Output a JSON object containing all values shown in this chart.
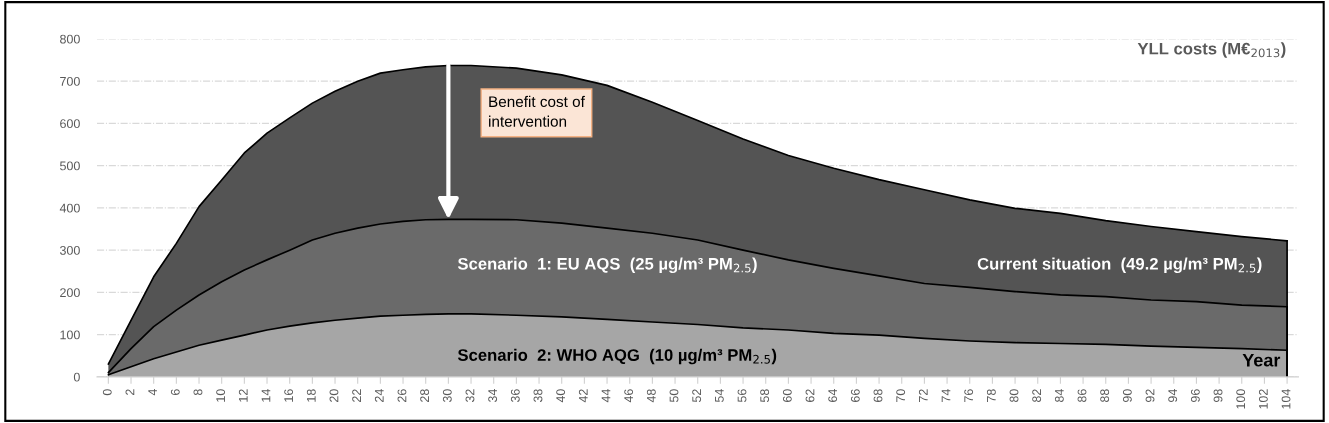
{
  "chart_data": {
    "type": "area",
    "title": "YLL costs (M€$_{2013}$)",
    "xlabel": "Year",
    "x": [
      0,
      2,
      4,
      6,
      8,
      10,
      12,
      14,
      16,
      18,
      20,
      22,
      24,
      26,
      28,
      30,
      32,
      36,
      40,
      44,
      48,
      52,
      56,
      60,
      64,
      68,
      72,
      76,
      80,
      84,
      88,
      92,
      96,
      100,
      104
    ],
    "series": [
      {
        "name": "Current situation  (49.2 µg/m³ PM$_{2.5}$)",
        "color": "#545454",
        "values": [
          30,
          134,
          237,
          316,
          403,
          466,
          530,
          577,
          613,
          648,
          676,
          700,
          719,
          727,
          734,
          737,
          737,
          731,
          715,
          690,
          650,
          607,
          563,
          524,
          494,
          467,
          443,
          419,
          399,
          387,
          370,
          356,
          344,
          332,
          322
        ]
      },
      {
        "name": "Scenario  1: EU AQS  (25 µg/m³ PM$_{2.5}$)",
        "color": "#6a6a6a",
        "values": [
          10,
          67,
          119,
          158,
          194,
          225,
          253,
          277,
          300,
          324,
          340,
          352,
          362,
          368,
          372,
          373,
          373,
          372,
          364,
          352,
          340,
          324,
          300,
          277,
          257,
          239,
          221,
          212,
          202,
          194,
          190,
          182,
          178,
          170,
          166
        ]
      },
      {
        "name": "Scenario  2: WHO AQG  (10 µg/m³ PM$_{2.5}$)",
        "color": "#a6a6a6",
        "values": [
          5,
          24,
          43,
          59,
          75,
          87,
          99,
          111,
          120,
          128,
          134,
          139,
          144,
          146,
          148,
          149,
          149,
          146,
          142,
          136,
          130,
          124,
          116,
          111,
          103,
          99,
          91,
          85,
          81,
          79,
          77,
          73,
          70,
          67,
          63
        ]
      }
    ],
    "annotations": [
      "Benefit cost of intervention"
    ],
    "xlim": [
      -1,
      105
    ],
    "xticks": [
      0,
      2,
      4,
      6,
      8,
      10,
      12,
      14,
      16,
      18,
      20,
      22,
      24,
      26,
      28,
      30,
      32,
      34,
      36,
      38,
      40,
      42,
      44,
      46,
      48,
      50,
      52,
      54,
      56,
      58,
      60,
      62,
      64,
      66,
      68,
      70,
      72,
      74,
      76,
      78,
      80,
      82,
      84,
      86,
      88,
      90,
      92,
      94,
      96,
      98,
      100,
      102,
      104
    ],
    "ylim": [
      0,
      800
    ],
    "yticks": [
      0,
      100,
      200,
      300,
      400,
      500,
      600,
      700,
      800
    ],
    "grid": "y",
    "legend": false
  }
}
